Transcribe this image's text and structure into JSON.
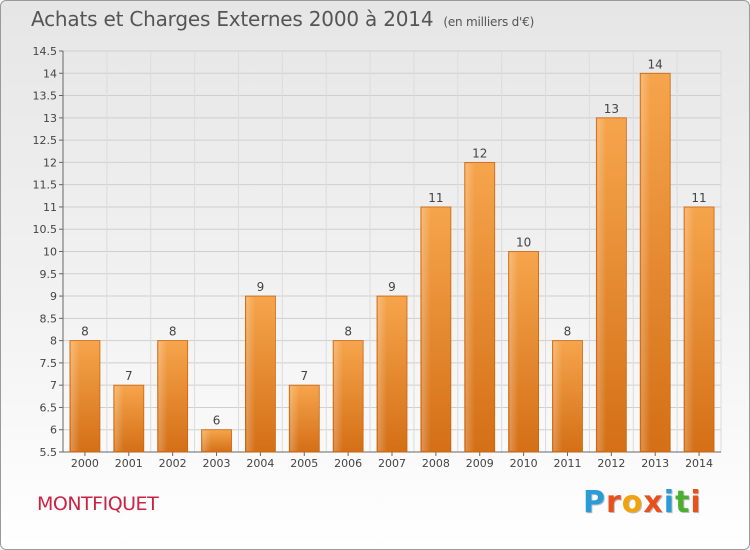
{
  "header": {
    "title": "Achats et Charges Externes 2000 à 2014",
    "subtitle": "(en milliers d'€)"
  },
  "footer": {
    "town": "MONTFIQUET",
    "logo_letters": [
      "P",
      "r",
      "o",
      "x",
      "i",
      "t",
      "i"
    ],
    "logo_colors": [
      "#2a9bd7",
      "#e8501e",
      "#f2a20c",
      "#e8501e",
      "#2a9bd7",
      "#4caf2f",
      "#e8501e"
    ]
  },
  "chart_data": {
    "type": "bar",
    "categories": [
      "2000",
      "2001",
      "2002",
      "2003",
      "2004",
      "2005",
      "2006",
      "2007",
      "2008",
      "2009",
      "2010",
      "2011",
      "2012",
      "2013",
      "2014"
    ],
    "values": [
      8,
      7,
      8,
      6,
      9,
      7,
      8,
      9,
      11,
      12,
      10,
      8,
      13,
      14,
      11
    ],
    "ylim": [
      5.5,
      14.5
    ],
    "yticks": [
      "5.5",
      "6",
      "6.5",
      "7",
      "7.5",
      "8",
      "8.5",
      "9",
      "9.5",
      "10",
      "10.5",
      "11",
      "11.5",
      "12",
      "12.5",
      "13",
      "13.5",
      "14",
      "14.5"
    ],
    "grid": true,
    "bar_color": "#f29a3a",
    "bar_color_dark": "#d46f16"
  }
}
